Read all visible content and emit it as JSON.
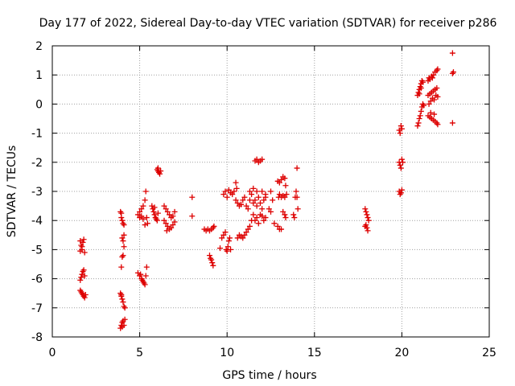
{
  "chart_data": {
    "type": "scatter",
    "title": "Day 177 of 2022, Sidereal Day-to-day VTEC variation (SDTVAR) for receiver p286",
    "xlabel": "GPS time / hours",
    "ylabel": "SDTVAR / TECUs",
    "xlim": [
      0,
      25
    ],
    "ylim": [
      -8,
      2
    ],
    "xticks": [
      0,
      5,
      10,
      15,
      20,
      25
    ],
    "yticks": [
      -8,
      -7,
      -6,
      -5,
      -4,
      -3,
      -2,
      -1,
      0,
      1,
      2
    ],
    "xtick_labels": [
      "0",
      "5",
      "10",
      "15",
      "20",
      "25"
    ],
    "ytick_labels": [
      "-8",
      "-7",
      "-6",
      "-5",
      "-4",
      "-3",
      "-2",
      "-1",
      "0",
      "1",
      "2"
    ],
    "grid": true,
    "marker": "+",
    "colors": {
      "series": "#dd0000",
      "grid": "#a0a0a0",
      "axis": "#000000"
    },
    "series": [
      {
        "name": "SDTVAR",
        "points": [
          [
            1.6,
            -4.7
          ],
          [
            1.65,
            -4.85
          ],
          [
            1.7,
            -5.0
          ],
          [
            1.75,
            -4.75
          ],
          [
            1.8,
            -4.65
          ],
          [
            1.85,
            -5.1
          ],
          [
            1.6,
            -5.05
          ],
          [
            1.7,
            -4.9
          ],
          [
            1.6,
            -6.05
          ],
          [
            1.65,
            -5.95
          ],
          [
            1.7,
            -5.85
          ],
          [
            1.75,
            -5.75
          ],
          [
            1.8,
            -5.7
          ],
          [
            1.85,
            -5.9
          ],
          [
            1.6,
            -6.4
          ],
          [
            1.65,
            -6.45
          ],
          [
            1.7,
            -6.5
          ],
          [
            1.75,
            -6.55
          ],
          [
            1.8,
            -6.6
          ],
          [
            1.85,
            -6.65
          ],
          [
            1.9,
            -6.55
          ],
          [
            3.9,
            -3.7
          ],
          [
            3.95,
            -3.9
          ],
          [
            4.0,
            -4.0
          ],
          [
            4.05,
            -4.1
          ],
          [
            4.1,
            -4.15
          ],
          [
            3.95,
            -3.75
          ],
          [
            4.0,
            -4.6
          ],
          [
            4.05,
            -4.7
          ],
          [
            4.1,
            -4.9
          ],
          [
            4.05,
            -5.2
          ],
          [
            4.0,
            -5.25
          ],
          [
            3.95,
            -5.6
          ],
          [
            4.1,
            -4.5
          ],
          [
            3.9,
            -6.5
          ],
          [
            3.95,
            -6.6
          ],
          [
            4.0,
            -6.7
          ],
          [
            4.05,
            -6.8
          ],
          [
            4.1,
            -6.95
          ],
          [
            4.15,
            -7.0
          ],
          [
            3.95,
            -6.55
          ],
          [
            3.9,
            -7.7
          ],
          [
            3.95,
            -7.6
          ],
          [
            4.0,
            -7.5
          ],
          [
            4.05,
            -7.45
          ],
          [
            4.1,
            -7.6
          ],
          [
            4.15,
            -7.4
          ],
          [
            4.0,
            -7.65
          ],
          [
            4.9,
            -3.8
          ],
          [
            5.0,
            -3.7
          ],
          [
            5.1,
            -3.6
          ],
          [
            5.2,
            -3.5
          ],
          [
            5.3,
            -3.3
          ],
          [
            5.35,
            -3.0
          ],
          [
            5.4,
            -3.9
          ],
          [
            5.45,
            -4.1
          ],
          [
            5.3,
            -4.15
          ],
          [
            5.2,
            -3.95
          ],
          [
            5.1,
            -3.85
          ],
          [
            5.0,
            -3.9
          ],
          [
            4.9,
            -5.8
          ],
          [
            5.0,
            -5.9
          ],
          [
            5.1,
            -6.0
          ],
          [
            5.2,
            -6.1
          ],
          [
            5.3,
            -6.2
          ],
          [
            5.35,
            -5.9
          ],
          [
            5.4,
            -5.6
          ],
          [
            5.25,
            -6.15
          ],
          [
            5.15,
            -6.05
          ],
          [
            5.05,
            -5.85
          ],
          [
            5.7,
            -3.5
          ],
          [
            5.75,
            -3.6
          ],
          [
            5.8,
            -3.7
          ],
          [
            5.85,
            -3.8
          ],
          [
            5.9,
            -3.9
          ],
          [
            5.95,
            -3.95
          ],
          [
            6.0,
            -4.0
          ],
          [
            6.05,
            -3.75
          ],
          [
            5.85,
            -3.55
          ],
          [
            6.0,
            -2.25
          ],
          [
            6.05,
            -2.3
          ],
          [
            6.1,
            -2.35
          ],
          [
            6.15,
            -2.4
          ],
          [
            6.2,
            -2.3
          ],
          [
            6.05,
            -2.2
          ],
          [
            6.4,
            -3.5
          ],
          [
            6.5,
            -3.6
          ],
          [
            6.6,
            -3.7
          ],
          [
            6.7,
            -3.8
          ],
          [
            6.8,
            -3.9
          ],
          [
            6.9,
            -3.85
          ],
          [
            7.0,
            -3.7
          ],
          [
            6.4,
            -4.0
          ],
          [
            6.5,
            -4.1
          ],
          [
            6.6,
            -4.2
          ],
          [
            6.7,
            -4.3
          ],
          [
            6.8,
            -4.25
          ],
          [
            6.9,
            -4.15
          ],
          [
            7.0,
            -4.05
          ],
          [
            6.55,
            -4.35
          ],
          [
            8.0,
            -3.2
          ],
          [
            8.0,
            -3.85
          ],
          [
            8.7,
            -4.3
          ],
          [
            8.8,
            -4.35
          ],
          [
            8.9,
            -4.3
          ],
          [
            9.0,
            -4.35
          ],
          [
            9.1,
            -4.3
          ],
          [
            9.2,
            -4.25
          ],
          [
            9.25,
            -4.2
          ],
          [
            9.0,
            -5.2
          ],
          [
            9.1,
            -5.35
          ],
          [
            9.15,
            -5.45
          ],
          [
            9.2,
            -5.55
          ],
          [
            9.05,
            -5.3
          ],
          [
            9.6,
            -4.95
          ],
          [
            9.7,
            -4.6
          ],
          [
            9.8,
            -4.5
          ],
          [
            9.9,
            -4.4
          ],
          [
            9.95,
            -5.0
          ],
          [
            10.0,
            -5.05
          ],
          [
            10.05,
            -4.9
          ],
          [
            10.1,
            -4.7
          ],
          [
            10.15,
            -4.6
          ],
          [
            10.2,
            -5.0
          ],
          [
            9.8,
            -3.1
          ],
          [
            9.9,
            -3.0
          ],
          [
            10.0,
            -3.2
          ],
          [
            10.1,
            -2.95
          ],
          [
            10.2,
            -3.05
          ],
          [
            10.3,
            -3.1
          ],
          [
            10.4,
            -3.0
          ],
          [
            10.5,
            -2.7
          ],
          [
            10.55,
            -2.9
          ],
          [
            10.5,
            -3.3
          ],
          [
            10.6,
            -3.4
          ],
          [
            10.7,
            -3.5
          ],
          [
            10.8,
            -3.45
          ],
          [
            10.9,
            -3.3
          ],
          [
            11.0,
            -3.2
          ],
          [
            11.1,
            -3.5
          ],
          [
            11.2,
            -3.6
          ],
          [
            11.3,
            -3.3
          ],
          [
            11.4,
            -3.1
          ],
          [
            11.5,
            -3.4
          ],
          [
            11.6,
            -3.3
          ],
          [
            11.7,
            -3.5
          ],
          [
            11.8,
            -3.2
          ],
          [
            11.9,
            -3.4
          ],
          [
            12.0,
            -3.6
          ],
          [
            12.1,
            -3.3
          ],
          [
            12.2,
            -3.2
          ],
          [
            10.6,
            -4.6
          ],
          [
            10.7,
            -4.5
          ],
          [
            10.8,
            -4.55
          ],
          [
            10.9,
            -4.6
          ],
          [
            11.0,
            -4.5
          ],
          [
            11.1,
            -4.4
          ],
          [
            11.2,
            -4.3
          ],
          [
            11.3,
            -4.2
          ],
          [
            11.4,
            -4.0
          ],
          [
            11.5,
            -3.8
          ],
          [
            11.6,
            -4.0
          ],
          [
            11.7,
            -3.9
          ],
          [
            11.8,
            -4.1
          ],
          [
            11.9,
            -3.8
          ],
          [
            12.0,
            -3.85
          ],
          [
            12.1,
            -4.0
          ],
          [
            12.2,
            -3.9
          ],
          [
            11.6,
            -1.95
          ],
          [
            11.7,
            -1.9
          ],
          [
            11.8,
            -2.0
          ],
          [
            11.9,
            -1.95
          ],
          [
            12.0,
            -1.9
          ],
          [
            11.3,
            -3.0
          ],
          [
            11.5,
            -2.9
          ],
          [
            11.7,
            -3.0
          ],
          [
            12.0,
            -3.0
          ],
          [
            12.2,
            -3.1
          ],
          [
            12.4,
            -3.6
          ],
          [
            12.5,
            -3.7
          ],
          [
            12.6,
            -3.3
          ],
          [
            12.7,
            -4.1
          ],
          [
            12.5,
            -3.0
          ],
          [
            12.9,
            -2.65
          ],
          [
            12.9,
            -4.2
          ],
          [
            13.0,
            -4.3
          ],
          [
            13.1,
            -4.3
          ],
          [
            13.2,
            -3.7
          ],
          [
            13.3,
            -3.8
          ],
          [
            13.35,
            -3.9
          ],
          [
            12.95,
            -3.2
          ],
          [
            13.0,
            -3.1
          ],
          [
            13.1,
            -3.2
          ],
          [
            13.2,
            -3.15
          ],
          [
            13.3,
            -3.2
          ],
          [
            13.4,
            -3.1
          ],
          [
            13.0,
            -2.7
          ],
          [
            13.1,
            -2.6
          ],
          [
            13.2,
            -2.5
          ],
          [
            13.3,
            -2.55
          ],
          [
            13.35,
            -2.8
          ],
          [
            13.8,
            -3.8
          ],
          [
            13.85,
            -3.9
          ],
          [
            13.9,
            -3.2
          ],
          [
            13.95,
            -3.0
          ],
          [
            14.0,
            -3.2
          ],
          [
            14.05,
            -3.6
          ],
          [
            14.0,
            -2.2
          ],
          [
            17.9,
            -3.6
          ],
          [
            17.95,
            -3.7
          ],
          [
            18.0,
            -3.8
          ],
          [
            18.05,
            -3.9
          ],
          [
            18.1,
            -4.0
          ],
          [
            17.95,
            -4.15
          ],
          [
            18.0,
            -4.25
          ],
          [
            18.05,
            -4.35
          ],
          [
            17.9,
            -4.2
          ],
          [
            19.85,
            -0.9
          ],
          [
            19.9,
            -1.0
          ],
          [
            19.95,
            -0.75
          ],
          [
            20.0,
            -0.85
          ],
          [
            19.85,
            -2.0
          ],
          [
            19.9,
            -2.1
          ],
          [
            19.95,
            -2.2
          ],
          [
            20.0,
            -1.9
          ],
          [
            20.05,
            -2.0
          ],
          [
            19.85,
            -3.0
          ],
          [
            19.9,
            -3.1
          ],
          [
            19.95,
            -3.05
          ],
          [
            20.0,
            -2.95
          ],
          [
            20.9,
            0.3
          ],
          [
            20.95,
            0.4
          ],
          [
            21.0,
            0.5
          ],
          [
            21.05,
            0.6
          ],
          [
            21.1,
            0.7
          ],
          [
            21.15,
            0.8
          ],
          [
            21.2,
            0.75
          ],
          [
            21.0,
            0.35
          ],
          [
            21.1,
            0.55
          ],
          [
            20.9,
            -0.75
          ],
          [
            20.95,
            -0.65
          ],
          [
            21.0,
            -0.5
          ],
          [
            21.05,
            -0.4
          ],
          [
            21.1,
            -0.25
          ],
          [
            21.15,
            -0.1
          ],
          [
            21.2,
            0.0
          ],
          [
            21.25,
            -0.05
          ],
          [
            21.5,
            0.8
          ],
          [
            21.55,
            0.9
          ],
          [
            21.6,
            0.85
          ],
          [
            21.7,
            0.95
          ],
          [
            21.8,
            1.0
          ],
          [
            21.9,
            1.1
          ],
          [
            22.0,
            1.15
          ],
          [
            22.05,
            1.2
          ],
          [
            21.75,
            0.9
          ],
          [
            21.5,
            0.3
          ],
          [
            21.6,
            0.35
          ],
          [
            21.7,
            0.4
          ],
          [
            21.8,
            0.45
          ],
          [
            21.9,
            0.5
          ],
          [
            22.0,
            0.55
          ],
          [
            21.55,
            0.0
          ],
          [
            21.65,
            0.1
          ],
          [
            21.75,
            0.2
          ],
          [
            21.85,
            0.15
          ],
          [
            21.95,
            0.3
          ],
          [
            22.05,
            0.25
          ],
          [
            21.5,
            -0.4
          ],
          [
            21.6,
            -0.45
          ],
          [
            21.7,
            -0.5
          ],
          [
            21.8,
            -0.55
          ],
          [
            21.9,
            -0.6
          ],
          [
            22.0,
            -0.65
          ],
          [
            22.05,
            -0.7
          ],
          [
            21.65,
            -0.3
          ],
          [
            21.85,
            -0.35
          ],
          [
            22.9,
            1.75
          ],
          [
            22.9,
            1.05
          ],
          [
            22.95,
            1.1
          ],
          [
            22.9,
            -0.65
          ]
        ]
      }
    ]
  }
}
